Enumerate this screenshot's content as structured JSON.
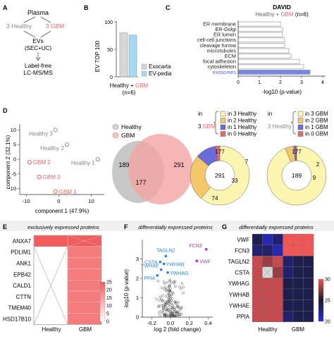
{
  "panelA": {
    "letter": "A",
    "plasma": "Plasma",
    "healthy": "3 Healthy",
    "gbm": "3 GBM",
    "evs": "EVs",
    "sec": "(SEC+UC)",
    "label1": "Label-free",
    "label2": "LC-MS/MS"
  },
  "panelB": {
    "letter": "B",
    "ylabel": "EV TOP 100",
    "xlabel_healthy": "Healthy + ",
    "xlabel_gbm": "GBM",
    "xlabel_n": "(n=6)",
    "tick_0": "0",
    "tick_50": "50",
    "tick_100": "100",
    "legend": [
      "Exocarta",
      "EV-pedia"
    ]
  },
  "panelC": {
    "letter": "C",
    "title": "DAVID",
    "sub_healthy": "Healthy + ",
    "sub_gbm": "GBM",
    "sub_n": " (n=6)",
    "xlabel": "-log10 (p-value)",
    "ticks": [
      "0",
      "1",
      "2",
      "3",
      "4"
    ]
  },
  "panelD": {
    "letter": "D",
    "ylabel": "component 2 (32.1%)",
    "xlabel": "component 1 (47.9%)",
    "xticks": [
      "-10",
      "0",
      "10"
    ],
    "yticks": [
      "10",
      "5",
      "0",
      "-5",
      "-10"
    ],
    "points": [
      "Healthy 3",
      "Healthy 2",
      "Healthy 1",
      "GBM 2",
      "GBM 3",
      "GBM 1"
    ],
    "venn_legend": [
      "Healthy",
      "GBM"
    ],
    "venn_left": "189",
    "venn_mid": "177",
    "venn_right": "291",
    "d1_in": "in",
    "d1_num": "3",
    "d1_gbm": "GBM",
    "d1_legend": [
      "in 3 Healthy",
      "in 2 Healthy",
      "in 1 Healthy",
      "in 0 Healthy"
    ],
    "d1_center": "291",
    "d1_values": [
      "177",
      "74",
      "33",
      "7"
    ],
    "d2_in": "in",
    "d2_healthy": "3 Healthy",
    "d2_legend": [
      "in 3 GBM",
      "in 2 GBM",
      "in 1 GBM",
      "in 0 GBM"
    ],
    "d2_center": "189",
    "d2_values": [
      "177",
      "9",
      "2",
      "1"
    ]
  },
  "panelE": {
    "letter": "E",
    "title": "exclusively expressed proteins",
    "rows": [
      "ANXA7",
      "PDLIM1",
      "ANK1",
      "EPB42",
      "CALD1",
      "CTTN",
      "TMEM40",
      "HSD17B10"
    ],
    "cols": [
      "Healthy",
      "GBM"
    ],
    "scale": [
      "0",
      "5",
      "10",
      "15",
      "20",
      "25"
    ]
  },
  "panelF": {
    "letter": "F",
    "title": "differentially expressed proteins",
    "ylabel": "-log10 (p-value)",
    "xlabel": "log 2 (fold change)",
    "xticks": [
      "-0.2",
      "0.0",
      "0.2",
      "0.4"
    ],
    "yticks": [
      "0",
      "1",
      "2",
      "3"
    ],
    "labels_blue": [
      "TAGLN2",
      "CSTA",
      "YWHAB",
      "YWHAE",
      "YWHAG",
      "PPIA"
    ],
    "labels_purple": [
      "FCN3",
      "VWF"
    ]
  },
  "panelG": {
    "letter": "G",
    "title": "differentially expressed proteins",
    "rows": [
      "VWF",
      "FCN3",
      "TAGLN2",
      "CSTA",
      "YWHAG",
      "YWHAB",
      "YWHAE",
      "PPIA"
    ],
    "cols": [
      "Healthy",
      "GBM"
    ],
    "scale": [
      "20",
      "25",
      "30"
    ]
  },
  "chart_data": [
    {
      "type": "bar",
      "panel": "B",
      "categories": [
        "Exocarta",
        "EV-pedia"
      ],
      "values": [
        80,
        76
      ],
      "ylabel": "EV TOP 100",
      "ylim": [
        0,
        100
      ]
    },
    {
      "type": "bar",
      "panel": "C",
      "orientation": "horizontal",
      "title": "DAVID",
      "categories": [
        "ER membrane",
        "ER-Golgi",
        "ER lumen",
        "cell-cell junctions",
        "cleavage furrow",
        "microtubules",
        "ECM",
        "focal adhesion",
        "cytoskeleton",
        "exosomes"
      ],
      "values": [
        2.0,
        2.1,
        2.1,
        2.2,
        2.2,
        2.4,
        2.5,
        2.9,
        3.1,
        3.4
      ],
      "xlabel": "-log10 (p-value)",
      "xlim": [
        0,
        4
      ],
      "highlight": "exosomes"
    },
    {
      "type": "scatter",
      "panel": "D",
      "xlabel": "component 1 (47.9%)",
      "ylabel": "component 2 (32.1%)",
      "xlim": [
        -12,
        14
      ],
      "ylim": [
        -12,
        12
      ],
      "points": [
        {
          "label": "Healthy 3",
          "x": -1,
          "y": 10,
          "group": "Healthy"
        },
        {
          "label": "Healthy 2",
          "x": 2.5,
          "y": 5,
          "group": "Healthy"
        },
        {
          "label": "Healthy 1",
          "x": 12,
          "y": 0,
          "group": "Healthy"
        },
        {
          "label": "GBM 2",
          "x": -9,
          "y": -1,
          "group": "GBM"
        },
        {
          "label": "GBM 3",
          "x": -6,
          "y": -6,
          "group": "GBM"
        },
        {
          "label": "GBM 1",
          "x": -1,
          "y": -11,
          "group": "GBM"
        }
      ]
    },
    {
      "type": "pie",
      "panel": "D",
      "center": "291",
      "slices": [
        {
          "label": "in 3 Healthy",
          "value": 177
        },
        {
          "label": "in 2 Healthy",
          "value": 74
        },
        {
          "label": "in 1 Healthy",
          "value": 33
        },
        {
          "label": "in 0 Healthy",
          "value": 7
        }
      ]
    },
    {
      "type": "pie",
      "panel": "D",
      "center": "189",
      "slices": [
        {
          "label": "in 3 GBM",
          "value": 177
        },
        {
          "label": "in 2 GBM",
          "value": 9
        },
        {
          "label": "in 1 GBM",
          "value": 2
        },
        {
          "label": "in 0 GBM",
          "value": 1
        }
      ]
    },
    {
      "type": "heatmap",
      "panel": "E",
      "rows": [
        "ANXA7",
        "PDLIM1",
        "ANK1",
        "EPB42",
        "CALD1",
        "CTTN",
        "TMEM40",
        "HSD17B10"
      ],
      "cols": [
        "Healthy",
        "GBM"
      ],
      "values": [
        [
          25,
          25
        ],
        [
          null,
          20
        ],
        [
          null,
          20
        ],
        [
          null,
          20
        ],
        [
          null,
          20
        ],
        [
          null,
          20
        ],
        [
          null,
          20
        ],
        [
          null,
          20
        ]
      ],
      "scale": [
        0,
        25
      ]
    },
    {
      "type": "scatter",
      "panel": "F",
      "xlabel": "log 2 (fold change)",
      "ylabel": "-log10 (p-value)",
      "xlim": [
        -0.3,
        0.45
      ],
      "ylim": [
        0,
        4
      ],
      "labeled": [
        {
          "label": "FCN3",
          "x": 0.38,
          "y": 3.5,
          "group": "up"
        },
        {
          "label": "VWF",
          "x": 0.28,
          "y": 2.9,
          "group": "up"
        },
        {
          "label": "TAGLN2",
          "x": -0.05,
          "y": 3.15,
          "group": "down"
        },
        {
          "label": "CSTA",
          "x": -0.11,
          "y": 2.85,
          "group": "down"
        },
        {
          "label": "YWHAB",
          "x": -0.07,
          "y": 2.75,
          "group": "down"
        },
        {
          "label": "YWHAE",
          "x": -0.1,
          "y": 2.45,
          "group": "down"
        },
        {
          "label": "YWHAG",
          "x": -0.03,
          "y": 2.3,
          "group": "down"
        },
        {
          "label": "PPIA",
          "x": -0.14,
          "y": 2.15,
          "group": "down"
        }
      ]
    },
    {
      "type": "heatmap",
      "panel": "G",
      "rows": [
        "VWF",
        "FCN3",
        "TAGLN2",
        "CSTA",
        "YWHAG",
        "YWHAB",
        "YWHAE",
        "PPIA"
      ],
      "cols": [
        "Healthy",
        "GBM"
      ],
      "values": [
        [
          24,
          21,
          23,
          30,
          30,
          30
        ],
        [
          23,
          23,
          21,
          30,
          31,
          30
        ],
        [
          29,
          28,
          29,
          23,
          24,
          24
        ],
        [
          29,
          null,
          28,
          23,
          24,
          24
        ],
        [
          29,
          29,
          29,
          24,
          24,
          24
        ],
        [
          29,
          29,
          29,
          24,
          24,
          24
        ],
        [
          29,
          29,
          29,
          24,
          24,
          24
        ],
        [
          29,
          29,
          29,
          23,
          24,
          24
        ]
      ],
      "scale": [
        20,
        30
      ]
    }
  ],
  "colors": {
    "healthy": "#a7a7a7",
    "gbm": "#e8686c",
    "exocarta": "#d8d8d8",
    "evpedia": "#a8d8f0",
    "exosome_bar": "#7b86dd",
    "exosome_text": "#5a67d8",
    "yellow_light": "#fdf6b0",
    "yellow_dark": "#f4c86a",
    "purple": "#6a6ad8",
    "red": "#e8686c",
    "fcn3": "#a23cb0",
    "tagln2": "#2e86de"
  }
}
